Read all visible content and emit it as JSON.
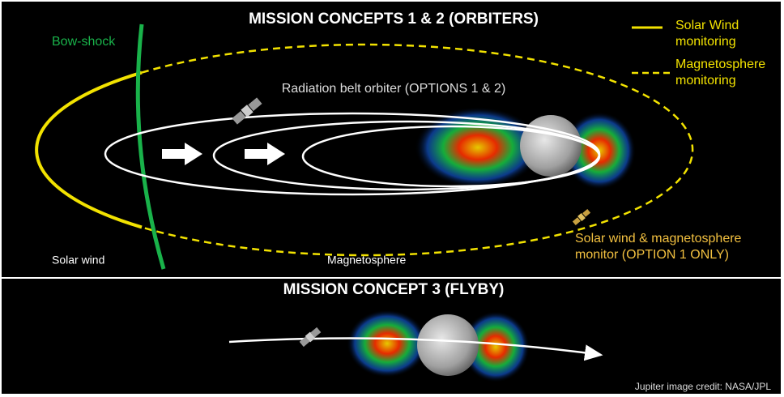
{
  "top_panel": {
    "title": "MISSION CONCEPTS 1 & 2 (ORBITERS)",
    "bow_shock": "Bow-shock",
    "orbit_label": "Radiation belt orbiter (OPTIONS 1 & 2)",
    "region_left": "Solar wind",
    "region_right": "Magnetosphere",
    "monitor_label": [
      "Solar wind & magnetosphere",
      "monitor (OPTION 1 ONLY)"
    ]
  },
  "legend": [
    {
      "lines": [
        "Solar Wind",
        "monitoring"
      ]
    },
    {
      "lines": [
        "Magnetosphere",
        "monitoring"
      ]
    }
  ],
  "bottom_panel": {
    "title": "MISSION CONCEPT 3 (FLYBY)",
    "credit": "Jupiter image credit: NASA/JPL"
  }
}
